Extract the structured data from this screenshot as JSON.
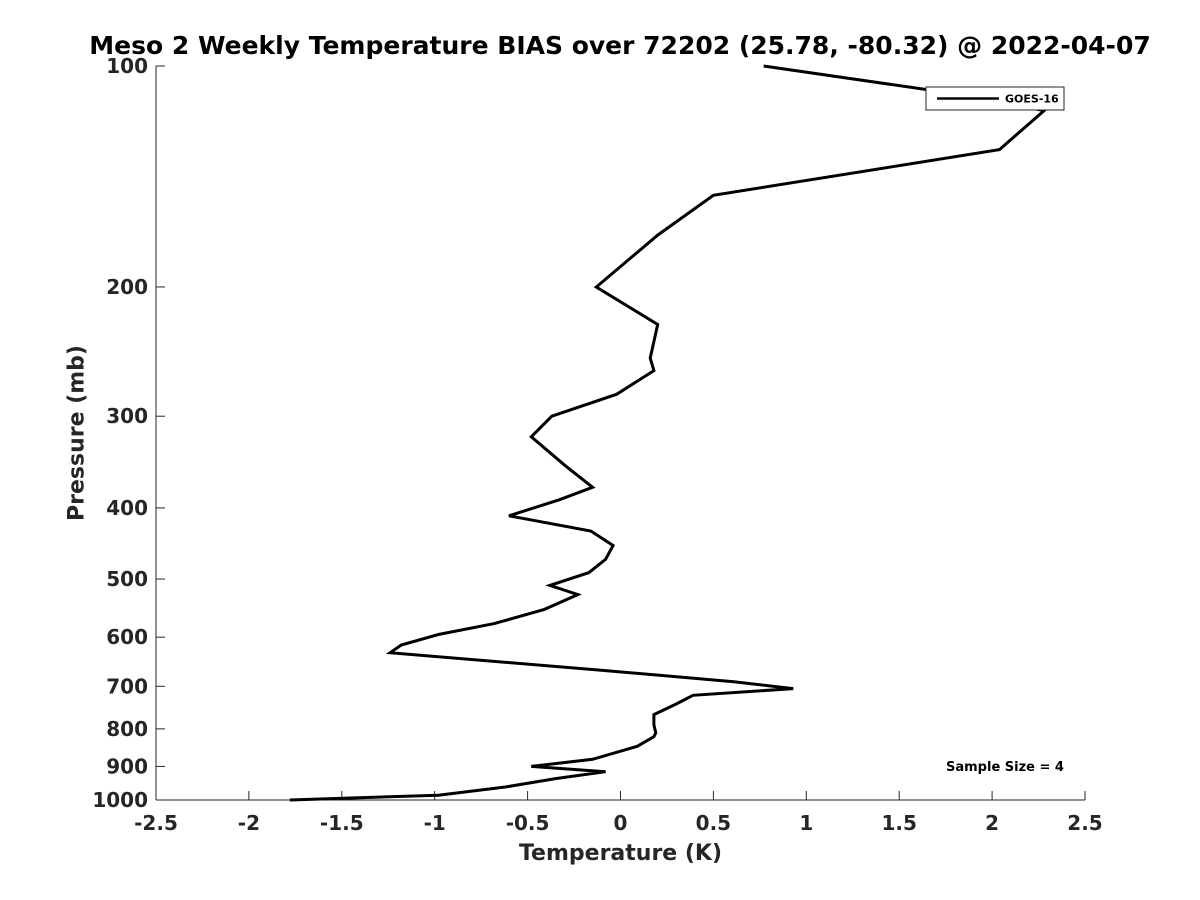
{
  "chart_data": {
    "type": "line",
    "title": "Meso 2 Weekly Temperature BIAS over 72202 (25.78, -80.32) @ 2022-04-07",
    "xlabel": "Temperature (K)",
    "ylabel": "Pressure (mb)",
    "xlim": [
      -2.5,
      2.5
    ],
    "ylim": [
      100,
      1000
    ],
    "y_scale": "log",
    "y_reversed": true,
    "x_ticks": [
      -2.5,
      -2,
      -1.5,
      -1,
      -0.5,
      0,
      0.5,
      1,
      1.5,
      2,
      2.5
    ],
    "x_tick_labels": [
      "-2.5",
      "-2",
      "-1.5",
      "-1",
      "-0.5",
      "0",
      "0.5",
      "1",
      "1.5",
      "2",
      "2.5"
    ],
    "y_ticks": [
      100,
      200,
      300,
      400,
      500,
      600,
      700,
      800,
      900,
      1000
    ],
    "y_tick_labels": [
      "100",
      "200",
      "300",
      "400",
      "500",
      "600",
      "700",
      "800",
      "900",
      "1000"
    ],
    "grid": false,
    "legend_position": "top-right",
    "series": [
      {
        "name": "GOES-16",
        "color": "#000000",
        "points": [
          {
            "x": 0.77,
            "p": 100
          },
          {
            "x": 1.9,
            "p": 110
          },
          {
            "x": 2.28,
            "p": 115
          },
          {
            "x": 2.04,
            "p": 130
          },
          {
            "x": 0.5,
            "p": 150
          },
          {
            "x": 0.2,
            "p": 170
          },
          {
            "x": -0.13,
            "p": 200
          },
          {
            "x": 0.2,
            "p": 225
          },
          {
            "x": 0.16,
            "p": 250
          },
          {
            "x": 0.18,
            "p": 260
          },
          {
            "x": -0.02,
            "p": 280
          },
          {
            "x": -0.37,
            "p": 300
          },
          {
            "x": -0.48,
            "p": 320
          },
          {
            "x": -0.3,
            "p": 350
          },
          {
            "x": -0.15,
            "p": 375
          },
          {
            "x": -0.33,
            "p": 390
          },
          {
            "x": -0.6,
            "p": 410
          },
          {
            "x": -0.16,
            "p": 430
          },
          {
            "x": -0.04,
            "p": 450
          },
          {
            "x": -0.08,
            "p": 470
          },
          {
            "x": -0.17,
            "p": 490
          },
          {
            "x": -0.38,
            "p": 510
          },
          {
            "x": -0.23,
            "p": 525
          },
          {
            "x": -0.41,
            "p": 550
          },
          {
            "x": -0.68,
            "p": 575
          },
          {
            "x": -0.98,
            "p": 595
          },
          {
            "x": -1.18,
            "p": 615
          },
          {
            "x": -1.24,
            "p": 630
          },
          {
            "x": -0.12,
            "p": 665
          },
          {
            "x": 0.61,
            "p": 690
          },
          {
            "x": 0.93,
            "p": 705
          },
          {
            "x": 0.39,
            "p": 720
          },
          {
            "x": 0.3,
            "p": 740
          },
          {
            "x": 0.18,
            "p": 765
          },
          {
            "x": 0.18,
            "p": 790
          },
          {
            "x": 0.19,
            "p": 810
          },
          {
            "x": 0.18,
            "p": 820
          },
          {
            "x": 0.09,
            "p": 845
          },
          {
            "x": -0.15,
            "p": 880
          },
          {
            "x": -0.48,
            "p": 900
          },
          {
            "x": -0.08,
            "p": 915
          },
          {
            "x": -0.35,
            "p": 935
          },
          {
            "x": -0.62,
            "p": 960
          },
          {
            "x": -0.98,
            "p": 985
          },
          {
            "x": -1.78,
            "p": 1000
          }
        ]
      }
    ],
    "annotation": "Sample Size = 4"
  }
}
